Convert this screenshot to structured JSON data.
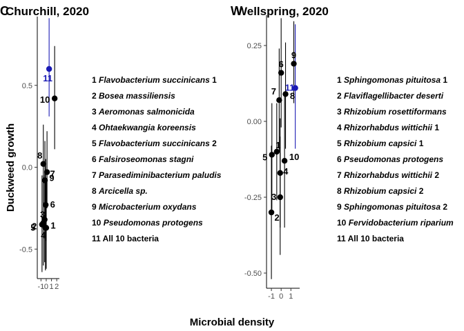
{
  "axis_labels": {
    "x": "Microbial density",
    "y": "Duckweed growth"
  },
  "colors": {
    "default": "#000000",
    "highlight": "#1a1ab4"
  },
  "chart_data": [
    {
      "type": "scatter",
      "panel_letter": "C",
      "title": "Churchill, 2020",
      "xlabel": "Microbial density",
      "ylabel": "Duckweed growth",
      "xlim": [
        -1.7,
        2.5
      ],
      "ylim": [
        -0.68,
        0.92
      ],
      "x_ticks": [
        "-1",
        "0",
        "1",
        "2"
      ],
      "y_ticks": [
        "-0.5",
        "0.0",
        "0.5"
      ],
      "grid": false,
      "points": [
        {
          "label": "1",
          "x": 0.0,
          "y": -0.37,
          "ylow": -0.62,
          "yhigh": -0.08,
          "color": "default"
        },
        {
          "label": "2",
          "x": -0.55,
          "y": -0.34,
          "ylow": -0.6,
          "yhigh": -0.05,
          "color": "default"
        },
        {
          "label": "3",
          "x": -0.3,
          "y": -0.32,
          "ylow": -0.58,
          "yhigh": -0.02,
          "color": "default"
        },
        {
          "label": "4",
          "x": -0.15,
          "y": -0.37,
          "ylow": -0.63,
          "yhigh": -0.08,
          "color": "default"
        },
        {
          "label": "5",
          "x": -0.8,
          "y": -0.35,
          "ylow": -0.64,
          "yhigh": -0.05,
          "color": "default"
        },
        {
          "label": "6",
          "x": -0.1,
          "y": -0.23,
          "ylow": -0.45,
          "yhigh": 0.05,
          "color": "default"
        },
        {
          "label": "7",
          "x": 0.15,
          "y": -0.03,
          "ylow": -0.25,
          "yhigh": 0.22,
          "color": "default"
        },
        {
          "label": "8",
          "x": -0.55,
          "y": 0.02,
          "ylow": -0.22,
          "yhigh": 0.26,
          "color": "default"
        },
        {
          "label": "9",
          "x": -0.25,
          "y": -0.08,
          "ylow": -0.3,
          "yhigh": 0.16,
          "color": "default"
        },
        {
          "label": "10",
          "x": 1.6,
          "y": 0.42,
          "ylow": 0.11,
          "yhigh": 0.74,
          "color": "default"
        },
        {
          "label": "11",
          "x": 0.55,
          "y": 0.6,
          "ylow": 0.31,
          "yhigh": 0.91,
          "color": "highlight"
        }
      ]
    },
    {
      "type": "scatter",
      "panel_letter": "W",
      "title": "Wellspring, 2020",
      "xlabel": "Microbial density",
      "ylabel": "Duckweed growth",
      "xlim": [
        -1.5,
        1.9
      ],
      "ylim": [
        -0.55,
        0.35
      ],
      "x_ticks": [
        "-1",
        "0",
        "1"
      ],
      "y_ticks": [
        "-0.50",
        "-0.25",
        "0.00",
        "0.25"
      ],
      "grid": false,
      "points": [
        {
          "label": "1",
          "x": -0.45,
          "y": -0.1,
          "ylow": -0.26,
          "yhigh": 0.06,
          "color": "default"
        },
        {
          "label": "2",
          "x": -1.0,
          "y": -0.3,
          "ylow": -0.52,
          "yhigh": -0.08,
          "color": "default"
        },
        {
          "label": "3",
          "x": -0.1,
          "y": -0.25,
          "ylow": -0.44,
          "yhigh": -0.05,
          "color": "default"
        },
        {
          "label": "4",
          "x": -0.1,
          "y": -0.17,
          "ylow": -0.35,
          "yhigh": 0.01,
          "color": "default"
        },
        {
          "label": "5",
          "x": -0.95,
          "y": -0.11,
          "ylow": -0.29,
          "yhigh": 0.06,
          "color": "default"
        },
        {
          "label": "6",
          "x": 0.0,
          "y": 0.16,
          "ylow": -0.02,
          "yhigh": 0.34,
          "color": "default"
        },
        {
          "label": "7",
          "x": -0.2,
          "y": 0.07,
          "ylow": -0.1,
          "yhigh": 0.24,
          "color": "default"
        },
        {
          "label": "8",
          "x": 0.45,
          "y": 0.09,
          "ylow": -0.09,
          "yhigh": 0.26,
          "color": "default"
        },
        {
          "label": "9",
          "x": 1.3,
          "y": 0.19,
          "ylow": 0.06,
          "yhigh": 0.33,
          "color": "default"
        },
        {
          "label": "10",
          "x": 0.35,
          "y": -0.13,
          "ylow": -0.35,
          "yhigh": 0.09,
          "color": "default"
        },
        {
          "label": "11",
          "x": 1.45,
          "y": 0.11,
          "ylow": -0.09,
          "yhigh": 0.32,
          "color": "highlight"
        }
      ]
    }
  ],
  "legends": [
    {
      "entries": [
        {
          "num": "1",
          "name": "Flavobacterium succinicans",
          "suffix": " 1",
          "italic": true
        },
        {
          "num": "2",
          "name": "Bosea massiliensis",
          "suffix": "",
          "italic": true
        },
        {
          "num": "3",
          "name": "Aeromonas salmonicida",
          "suffix": "",
          "italic": true
        },
        {
          "num": "4",
          "name": "Ohtaekwangia koreensis",
          "suffix": "",
          "italic": true
        },
        {
          "num": "5",
          "name": "Flavobacterium succinicans",
          "suffix": " 2",
          "italic": true
        },
        {
          "num": "6",
          "name": "Falsiroseomonas stagni",
          "suffix": "",
          "italic": true
        },
        {
          "num": "7",
          "name": "Parasediminibacterium paludis",
          "suffix": "",
          "italic": true
        },
        {
          "num": "8",
          "name": "Arcicella",
          "suffix": " sp.",
          "italic": true
        },
        {
          "num": "9",
          "name": "Microbacterium oxydans",
          "suffix": "",
          "italic": true
        },
        {
          "num": "10",
          "name": "Pseudomonas protogens",
          "suffix": "",
          "italic": true
        },
        {
          "num": "11",
          "name": "All 10 bacteria",
          "suffix": "",
          "italic": false
        }
      ]
    },
    {
      "entries": [
        {
          "num": "1",
          "name": "Sphingomonas pituitosa",
          "suffix": " 1",
          "italic": true
        },
        {
          "num": "2",
          "name": "Flaviflagellibacter deserti",
          "suffix": "",
          "italic": true
        },
        {
          "num": "3",
          "name": "Rhizobium rosettiformans",
          "suffix": "",
          "italic": true
        },
        {
          "num": "4",
          "name": "Rhizorhabdus wittichii",
          "suffix": " 1",
          "italic": true
        },
        {
          "num": "5",
          "name": "Rhizobium capsici",
          "suffix": " 1",
          "italic": true
        },
        {
          "num": "6",
          "name": "Pseudomonas protogens",
          "suffix": "",
          "italic": true
        },
        {
          "num": "7",
          "name": "Rhizorhabdus wittichii",
          "suffix": " 2",
          "italic": true
        },
        {
          "num": "8",
          "name": "Rhizobium capsici",
          "suffix": " 2",
          "italic": true
        },
        {
          "num": "9",
          "name": "Sphingomonas pituitosa",
          "suffix": " 2",
          "italic": true
        },
        {
          "num": "10",
          "name": "Fervidobacterium riparium",
          "suffix": "",
          "italic": true
        },
        {
          "num": "11",
          "name": "All 10 bacteria",
          "suffix": "",
          "italic": false
        }
      ]
    }
  ]
}
